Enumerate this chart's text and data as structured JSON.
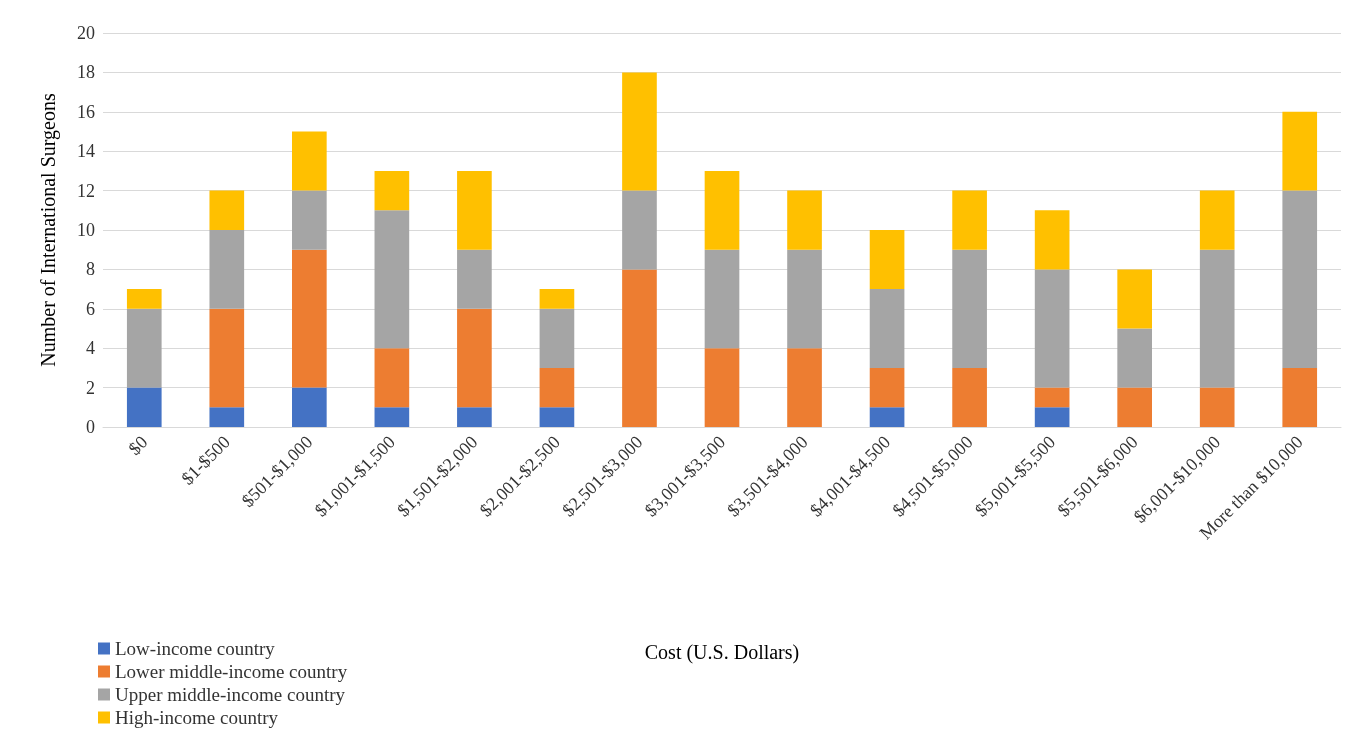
{
  "chart_data": {
    "type": "bar",
    "stacked": true,
    "xlabel": "Cost (U.S. Dollars)",
    "ylabel": "Number of International Surgeons",
    "categories": [
      "$0",
      "$1-$500",
      "$501-$1,000",
      "$1,001-$1,500",
      "$1,501-$2,000",
      "$2,001-$2,500",
      "$2,501-$3,000",
      "$3,001-$3,500",
      "$3,501-$4,000",
      "$4,001-$4,500",
      "$4,501-$5,000",
      "$5,001-$5,500",
      "$5,501-$6,000",
      "$6,001-$10,000",
      "More than $10,000"
    ],
    "series": [
      {
        "name": "Low-income country",
        "color": "#4472c4",
        "values": [
          2,
          1,
          2,
          1,
          1,
          1,
          0,
          0,
          0,
          1,
          0,
          1,
          0,
          0,
          0
        ]
      },
      {
        "name": "Lower middle-income country",
        "color": "#ed7d31",
        "values": [
          0,
          5,
          7,
          3,
          5,
          2,
          8,
          4,
          4,
          2,
          3,
          1,
          2,
          2,
          3
        ]
      },
      {
        "name": "Upper middle-income country",
        "color": "#a5a5a5",
        "values": [
          4,
          4,
          3,
          7,
          3,
          3,
          4,
          5,
          5,
          4,
          6,
          6,
          3,
          7,
          9
        ]
      },
      {
        "name": "High-income country",
        "color": "#ffc000",
        "values": [
          1,
          2,
          3,
          2,
          4,
          1,
          6,
          4,
          3,
          3,
          3,
          3,
          3,
          3,
          4
        ]
      }
    ],
    "ylim": [
      0,
      20
    ],
    "yticks": [
      0,
      2,
      4,
      6,
      8,
      10,
      12,
      14,
      16,
      18,
      20
    ],
    "grid": "y",
    "legend": "bottom left"
  }
}
